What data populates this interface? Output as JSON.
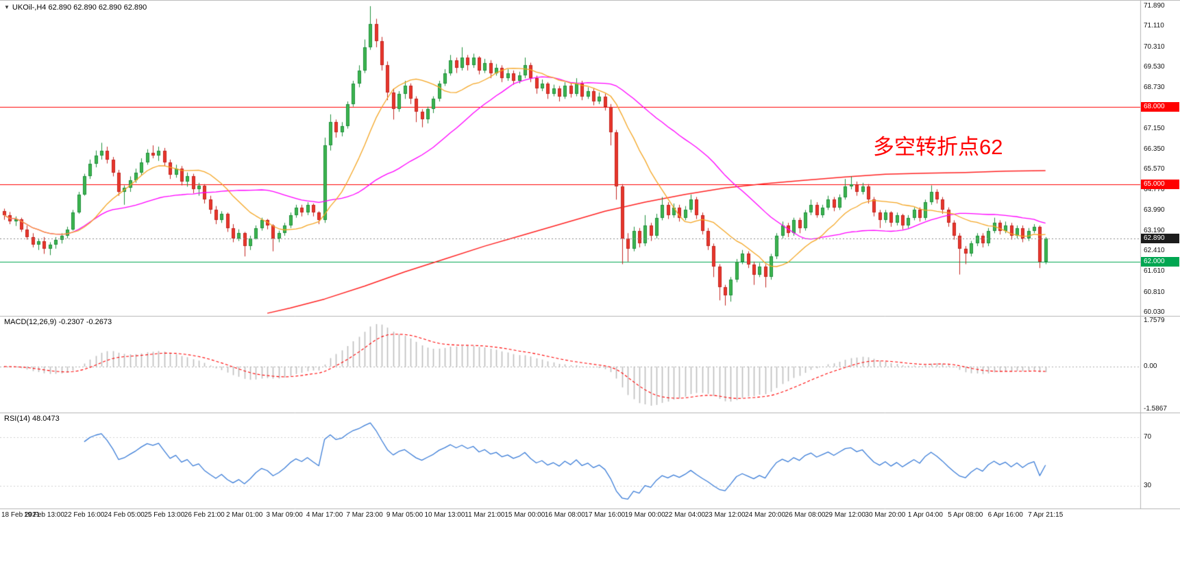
{
  "header": {
    "collapse_icon_glyph": "▼",
    "symbol_info": "UKOil-,H4 62.890 62.890 62.890 62.890"
  },
  "annotation": {
    "text": "多空转折点62",
    "color": "#ff0000"
  },
  "colors": {
    "candle_up": "#3db44f",
    "candle_up_border": "#1e8f3c",
    "candle_down": "#e8362b",
    "candle_down_border": "#c32420",
    "ma_fast": "#f5a623",
    "ma_mid": "#ff00ff",
    "ma_slow": "#ff2222",
    "level_red": "#ff0000",
    "level_green": "#00a651",
    "current_price_line": "#8a8a8a",
    "macd_histogram": "#bdbdbd",
    "macd_signal": "#ff0000",
    "rsi_line": "#3b7dd8",
    "separator": "#b4b4b4"
  },
  "price_axis": {
    "min": 60.03,
    "max": 71.89,
    "ticks": [
      "71.890",
      "71.110",
      "70.310",
      "69.530",
      "68.730",
      "67.150",
      "66.350",
      "65.570",
      "64.770",
      "63.990",
      "63.190",
      "62.410",
      "61.610",
      "60.810",
      "60.030"
    ]
  },
  "levels": [
    {
      "label": "68.000",
      "price": 68.0,
      "color": "#ff0000"
    },
    {
      "label": "65.000",
      "price": 65.0,
      "color": "#ff0000"
    },
    {
      "label": "62.000",
      "price": 62.0,
      "color": "#00a651"
    }
  ],
  "current_price": {
    "label": "62.890",
    "price": 62.89,
    "badge_color": "#1c1c1c"
  },
  "time_axis": {
    "labels": [
      "18 Feb 2021",
      "19 Feb 13:00",
      "22 Feb 16:00",
      "24 Feb 05:00",
      "25 Feb 13:00",
      "26 Feb 21:00",
      "2 Mar 01:00",
      "3 Mar 09:00",
      "4 Mar 17:00",
      "7 Mar 23:00",
      "9 Mar 05:00",
      "10 Mar 13:00",
      "11 Mar 21:00",
      "15 Mar 00:00",
      "16 Mar 08:00",
      "17 Mar 16:00",
      "19 Mar 00:00",
      "22 Mar 04:00",
      "23 Mar 12:00",
      "24 Mar 20:00",
      "26 Mar 08:00",
      "29 Mar 12:00",
      "30 Mar 20:00",
      "1 Apr 04:00",
      "5 Apr 08:00",
      "6 Apr 16:00",
      "7 Apr 21:15"
    ],
    "bars_per_label": 7
  },
  "panels": {
    "macd": {
      "label": "MACD(12,26,9) -0.2307 -0.2673",
      "fast": 12,
      "slow": 26,
      "signal": 9,
      "axis_labels": [
        "1.7579",
        "0.00",
        "-1.5867"
      ]
    },
    "rsi": {
      "label": "RSI(14) 48.0473",
      "period": 14,
      "levels": [
        70,
        30
      ],
      "level_labels": [
        "70",
        "30"
      ]
    }
  },
  "chart_data": {
    "type": "candlestick",
    "symbol": "UKOil-",
    "timeframe": "H4",
    "title": "UKOil- H4 candlestick chart with MA(fast/mid/slow), horizontal levels 68.000/65.000/62.000, MACD(12,26,9) and RSI(14)",
    "ylim": [
      60.03,
      71.89
    ],
    "ma_fast_period": 13,
    "ma_mid_period": 34,
    "ma_slow_points": [
      [
        46,
        60.0
      ],
      [
        50,
        60.2
      ],
      [
        56,
        60.55
      ],
      [
        63,
        61.05
      ],
      [
        70,
        61.6
      ],
      [
        77,
        62.1
      ],
      [
        84,
        62.6
      ],
      [
        91,
        63.05
      ],
      [
        98,
        63.5
      ],
      [
        105,
        63.95
      ],
      [
        112,
        64.3
      ],
      [
        119,
        64.6
      ],
      [
        126,
        64.85
      ],
      [
        133,
        65.02
      ],
      [
        140,
        65.15
      ],
      [
        147,
        65.28
      ],
      [
        154,
        65.38
      ],
      [
        161,
        65.42
      ],
      [
        168,
        65.45
      ],
      [
        175,
        65.5
      ],
      [
        182,
        65.52
      ]
    ],
    "ohlc": [
      [
        63.95,
        64.05,
        63.62,
        63.8
      ],
      [
        63.8,
        63.92,
        63.45,
        63.55
      ],
      [
        63.55,
        63.75,
        63.38,
        63.65
      ],
      [
        63.65,
        63.7,
        63.15,
        63.25
      ],
      [
        63.25,
        63.4,
        62.85,
        62.95
      ],
      [
        62.95,
        63.1,
        62.55,
        62.65
      ],
      [
        62.65,
        62.9,
        62.45,
        62.8
      ],
      [
        62.8,
        62.95,
        62.3,
        62.5
      ],
      [
        62.5,
        62.75,
        62.25,
        62.65
      ],
      [
        62.65,
        62.95,
        62.5,
        62.85
      ],
      [
        62.85,
        63.1,
        62.7,
        63.0
      ],
      [
        63.0,
        63.35,
        62.9,
        63.25
      ],
      [
        63.25,
        64.0,
        63.2,
        63.9
      ],
      [
        63.9,
        64.7,
        63.85,
        64.6
      ],
      [
        64.6,
        65.4,
        64.55,
        65.3
      ],
      [
        65.3,
        65.95,
        65.2,
        65.8
      ],
      [
        65.8,
        66.3,
        65.65,
        66.1
      ],
      [
        66.1,
        66.6,
        65.95,
        66.3
      ],
      [
        66.3,
        66.45,
        65.8,
        65.95
      ],
      [
        65.95,
        66.05,
        65.3,
        65.45
      ],
      [
        65.45,
        65.55,
        64.55,
        64.7
      ],
      [
        64.7,
        64.95,
        64.2,
        64.85
      ],
      [
        64.85,
        65.3,
        64.7,
        65.15
      ],
      [
        65.15,
        65.6,
        65.05,
        65.45
      ],
      [
        65.45,
        66.0,
        65.35,
        65.85
      ],
      [
        65.85,
        66.35,
        65.75,
        66.2
      ],
      [
        66.2,
        66.5,
        66.0,
        66.1
      ],
      [
        66.1,
        66.45,
        65.9,
        66.3
      ],
      [
        66.3,
        66.4,
        65.7,
        65.85
      ],
      [
        65.85,
        65.95,
        65.2,
        65.35
      ],
      [
        65.35,
        65.75,
        65.25,
        65.6
      ],
      [
        65.6,
        65.7,
        64.95,
        65.1
      ],
      [
        65.1,
        65.45,
        64.9,
        65.3
      ],
      [
        65.3,
        65.4,
        64.65,
        64.8
      ],
      [
        64.8,
        65.05,
        64.55,
        64.95
      ],
      [
        64.95,
        65.0,
        64.25,
        64.4
      ],
      [
        64.4,
        64.55,
        63.85,
        64.0
      ],
      [
        64.0,
        64.15,
        63.45,
        63.6
      ],
      [
        63.6,
        63.95,
        63.5,
        63.85
      ],
      [
        63.85,
        63.9,
        63.15,
        63.3
      ],
      [
        63.3,
        63.45,
        62.75,
        62.9
      ],
      [
        62.9,
        63.25,
        62.8,
        63.1
      ],
      [
        63.1,
        63.15,
        62.2,
        62.6
      ],
      [
        62.6,
        63.0,
        62.45,
        62.9
      ],
      [
        62.9,
        63.4,
        62.85,
        63.3
      ],
      [
        63.3,
        63.7,
        63.2,
        63.6
      ],
      [
        63.6,
        63.65,
        63.25,
        63.4
      ],
      [
        63.4,
        63.45,
        62.4,
        62.9
      ],
      [
        62.9,
        63.2,
        62.75,
        63.1
      ],
      [
        63.1,
        63.5,
        63.0,
        63.4
      ],
      [
        63.4,
        63.9,
        63.3,
        63.8
      ],
      [
        63.8,
        64.2,
        63.7,
        64.1
      ],
      [
        64.1,
        64.2,
        63.75,
        63.9
      ],
      [
        63.9,
        64.3,
        63.8,
        64.2
      ],
      [
        64.2,
        64.25,
        63.75,
        63.9
      ],
      [
        63.9,
        63.95,
        63.45,
        63.6
      ],
      [
        63.6,
        66.8,
        63.5,
        66.5
      ],
      [
        66.5,
        67.7,
        66.3,
        67.4
      ],
      [
        67.4,
        67.5,
        66.8,
        67.0
      ],
      [
        67.0,
        67.4,
        66.85,
        67.25
      ],
      [
        67.25,
        68.2,
        67.15,
        68.1
      ],
      [
        68.1,
        69.0,
        68.0,
        68.9
      ],
      [
        68.9,
        69.6,
        68.75,
        69.4
      ],
      [
        69.4,
        70.6,
        69.3,
        70.3
      ],
      [
        70.3,
        71.89,
        70.2,
        71.2
      ],
      [
        71.2,
        71.4,
        70.3,
        70.55
      ],
      [
        70.55,
        70.7,
        69.4,
        69.6
      ],
      [
        69.6,
        69.75,
        68.25,
        68.55
      ],
      [
        68.55,
        68.7,
        67.5,
        67.9
      ],
      [
        67.9,
        68.6,
        67.8,
        68.5
      ],
      [
        68.5,
        69.0,
        68.3,
        68.8
      ],
      [
        68.8,
        68.9,
        68.1,
        68.3
      ],
      [
        68.3,
        68.4,
        67.4,
        67.8
      ],
      [
        67.8,
        67.9,
        67.2,
        67.5
      ],
      [
        67.5,
        68.0,
        67.35,
        67.9
      ],
      [
        67.9,
        68.4,
        67.75,
        68.3
      ],
      [
        68.3,
        69.0,
        68.2,
        68.9
      ],
      [
        68.9,
        69.45,
        68.8,
        69.3
      ],
      [
        69.3,
        70.0,
        69.2,
        69.8
      ],
      [
        69.8,
        69.9,
        69.3,
        69.5
      ],
      [
        69.5,
        70.3,
        69.4,
        69.9
      ],
      [
        69.9,
        70.0,
        69.4,
        69.6
      ],
      [
        69.6,
        70.05,
        69.5,
        69.9
      ],
      [
        69.9,
        69.95,
        69.25,
        69.4
      ],
      [
        69.4,
        69.85,
        69.3,
        69.7
      ],
      [
        69.7,
        69.8,
        69.1,
        69.3
      ],
      [
        69.3,
        69.65,
        69.2,
        69.5
      ],
      [
        69.5,
        69.6,
        68.95,
        69.1
      ],
      [
        69.1,
        69.45,
        69.0,
        69.3
      ],
      [
        69.3,
        69.4,
        68.85,
        69.0
      ],
      [
        69.0,
        69.35,
        68.9,
        69.2
      ],
      [
        69.2,
        69.9,
        69.1,
        69.6
      ],
      [
        69.6,
        69.7,
        68.95,
        69.1
      ],
      [
        69.1,
        69.2,
        68.5,
        68.7
      ],
      [
        68.7,
        69.05,
        68.6,
        68.9
      ],
      [
        68.9,
        68.95,
        68.3,
        68.5
      ],
      [
        68.5,
        68.85,
        68.4,
        68.7
      ],
      [
        68.7,
        68.8,
        68.2,
        68.4
      ],
      [
        68.4,
        68.95,
        68.3,
        68.8
      ],
      [
        68.8,
        68.9,
        68.35,
        68.5
      ],
      [
        68.5,
        69.1,
        68.4,
        68.9
      ],
      [
        68.9,
        69.0,
        68.25,
        68.4
      ],
      [
        68.4,
        68.75,
        68.3,
        68.6
      ],
      [
        68.6,
        68.7,
        68.05,
        68.2
      ],
      [
        68.2,
        68.55,
        68.1,
        68.4
      ],
      [
        68.4,
        68.5,
        67.85,
        68.0
      ],
      [
        68.0,
        68.1,
        66.5,
        67.0
      ],
      [
        67.0,
        67.1,
        64.4,
        64.9
      ],
      [
        64.9,
        65.0,
        61.9,
        62.9
      ],
      [
        62.9,
        63.1,
        62.0,
        62.5
      ],
      [
        62.5,
        63.35,
        62.4,
        63.2
      ],
      [
        63.2,
        63.3,
        62.55,
        62.7
      ],
      [
        62.7,
        63.8,
        62.6,
        63.4
      ],
      [
        63.4,
        63.5,
        62.8,
        63.0
      ],
      [
        63.0,
        63.85,
        62.9,
        63.7
      ],
      [
        63.7,
        64.5,
        63.6,
        64.2
      ],
      [
        64.2,
        64.3,
        63.65,
        63.8
      ],
      [
        63.8,
        64.25,
        63.7,
        64.1
      ],
      [
        64.1,
        64.2,
        63.55,
        63.7
      ],
      [
        63.7,
        64.15,
        63.6,
        64.0
      ],
      [
        64.0,
        64.6,
        63.9,
        64.4
      ],
      [
        64.4,
        64.5,
        63.65,
        63.8
      ],
      [
        63.8,
        63.9,
        63.05,
        63.2
      ],
      [
        63.2,
        63.3,
        62.45,
        62.6
      ],
      [
        62.6,
        62.7,
        61.4,
        61.8
      ],
      [
        61.8,
        61.9,
        60.5,
        61.0
      ],
      [
        61.0,
        61.1,
        60.3,
        60.7
      ],
      [
        60.7,
        61.4,
        60.45,
        61.3
      ],
      [
        61.3,
        62.1,
        61.2,
        62.0
      ],
      [
        62.0,
        62.45,
        61.9,
        62.3
      ],
      [
        62.3,
        62.4,
        61.75,
        61.9
      ],
      [
        61.9,
        62.0,
        61.1,
        61.5
      ],
      [
        61.5,
        61.95,
        61.4,
        61.8
      ],
      [
        61.8,
        61.9,
        61.0,
        61.4
      ],
      [
        61.4,
        62.3,
        61.3,
        62.2
      ],
      [
        62.2,
        63.1,
        62.1,
        63.0
      ],
      [
        63.0,
        63.55,
        62.9,
        63.4
      ],
      [
        63.4,
        63.5,
        62.95,
        63.1
      ],
      [
        63.1,
        63.7,
        63.0,
        63.6
      ],
      [
        63.6,
        63.7,
        63.1,
        63.3
      ],
      [
        63.3,
        64.0,
        63.2,
        63.9
      ],
      [
        63.9,
        64.4,
        63.8,
        64.2
      ],
      [
        64.2,
        64.3,
        63.7,
        63.8
      ],
      [
        63.8,
        64.2,
        63.7,
        64.1
      ],
      [
        64.1,
        64.55,
        64.0,
        64.4
      ],
      [
        64.4,
        64.5,
        63.95,
        64.1
      ],
      [
        64.1,
        64.6,
        64.0,
        64.5
      ],
      [
        64.5,
        65.2,
        64.4,
        64.9
      ],
      [
        64.9,
        65.3,
        64.8,
        65.0
      ],
      [
        65.0,
        65.1,
        64.55,
        64.7
      ],
      [
        64.7,
        65.05,
        64.6,
        64.9
      ],
      [
        64.9,
        65.0,
        64.25,
        64.4
      ],
      [
        64.4,
        64.5,
        63.75,
        63.9
      ],
      [
        63.9,
        64.0,
        63.3,
        63.6
      ],
      [
        63.6,
        64.0,
        63.5,
        63.9
      ],
      [
        63.9,
        63.95,
        63.35,
        63.5
      ],
      [
        63.5,
        63.9,
        63.4,
        63.8
      ],
      [
        63.8,
        63.85,
        63.25,
        63.4
      ],
      [
        63.4,
        63.8,
        63.3,
        63.7
      ],
      [
        63.7,
        64.1,
        63.6,
        64.0
      ],
      [
        64.0,
        64.1,
        63.55,
        63.7
      ],
      [
        63.7,
        64.4,
        63.6,
        64.3
      ],
      [
        64.3,
        64.95,
        64.2,
        64.7
      ],
      [
        64.7,
        64.8,
        64.25,
        64.4
      ],
      [
        64.4,
        64.5,
        63.85,
        64.0
      ],
      [
        64.0,
        64.1,
        63.35,
        63.5
      ],
      [
        63.5,
        63.6,
        62.85,
        63.0
      ],
      [
        63.0,
        63.1,
        61.5,
        62.5
      ],
      [
        62.5,
        62.6,
        61.9,
        62.3
      ],
      [
        62.3,
        62.8,
        62.2,
        62.7
      ],
      [
        62.7,
        63.1,
        62.6,
        63.0
      ],
      [
        63.0,
        63.1,
        62.55,
        62.7
      ],
      [
        62.7,
        63.3,
        62.6,
        63.2
      ],
      [
        63.2,
        63.7,
        63.1,
        63.5
      ],
      [
        63.5,
        63.6,
        63.05,
        63.2
      ],
      [
        63.2,
        63.55,
        63.1,
        63.4
      ],
      [
        63.4,
        63.5,
        62.85,
        63.0
      ],
      [
        63.0,
        63.4,
        62.9,
        63.3
      ],
      [
        63.3,
        63.4,
        62.75,
        62.9
      ],
      [
        62.9,
        63.3,
        62.8,
        63.2
      ],
      [
        63.2,
        63.45,
        63.1,
        63.35
      ],
      [
        63.35,
        63.4,
        61.75,
        62.0
      ],
      [
        62.0,
        62.95,
        61.9,
        62.89
      ]
    ]
  }
}
